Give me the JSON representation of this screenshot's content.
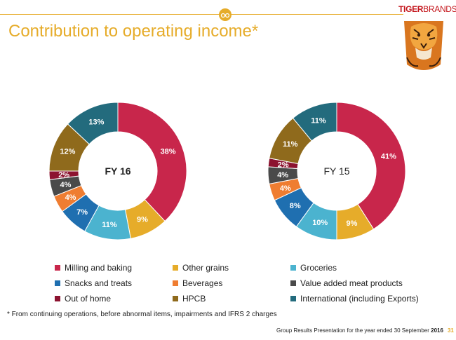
{
  "slide": {
    "title": "Contribution to operating income*",
    "brand_part1": "TIGER",
    "brand_part2": "BRANDS",
    "footnote": "*  From continuing operations, before abnormal items, impairments and IFRS 2 charges",
    "footer_text": "Group Results Presentation for the year ended 30 September",
    "footer_year": "2016",
    "page_number": "31",
    "accent_color": "#e6ac2a",
    "brand_color": "#c4161c"
  },
  "legend": [
    {
      "label": "Milling and baking",
      "color": "#c8264b"
    },
    {
      "label": "Other grains",
      "color": "#e6ac2a"
    },
    {
      "label": "Groceries",
      "color": "#4bb3cf"
    },
    {
      "label": "Snacks and treats",
      "color": "#1f6fb0"
    },
    {
      "label": "Beverages",
      "color": "#ef7d31"
    },
    {
      "label": "Value added meat products",
      "color": "#4a4a4a"
    },
    {
      "label": "Out of home",
      "color": "#8c1330"
    },
    {
      "label": "HPCB",
      "color": "#8f6a1c"
    },
    {
      "label": "International (including Exports)",
      "color": "#236b7d"
    }
  ],
  "chart_data": [
    {
      "type": "pie",
      "center_label": "FY 16",
      "categories": [
        "Milling and baking",
        "Other grains",
        "Groceries",
        "Snacks and treats",
        "Beverages",
        "Value added meat products",
        "Out of home",
        "HPCB",
        "International (including Exports)"
      ],
      "values": [
        38,
        9,
        11,
        7,
        4,
        4,
        2,
        12,
        13
      ],
      "labels": [
        "38%",
        "9%",
        "11%",
        "7%",
        "4%",
        "4%",
        "2%",
        "12%",
        "13%"
      ]
    },
    {
      "type": "pie",
      "center_label": "FY 15",
      "categories": [
        "Milling and baking",
        "Other grains",
        "Groceries",
        "Snacks and treats",
        "Beverages",
        "Value added meat products",
        "Out of home",
        "HPCB",
        "International (including Exports)"
      ],
      "values": [
        41,
        9,
        10,
        8,
        4,
        4,
        2,
        11,
        11
      ],
      "labels": [
        "41%",
        "9%",
        "10%",
        "8%",
        "4%",
        "4%",
        "2%",
        "11%",
        "11%"
      ]
    }
  ]
}
